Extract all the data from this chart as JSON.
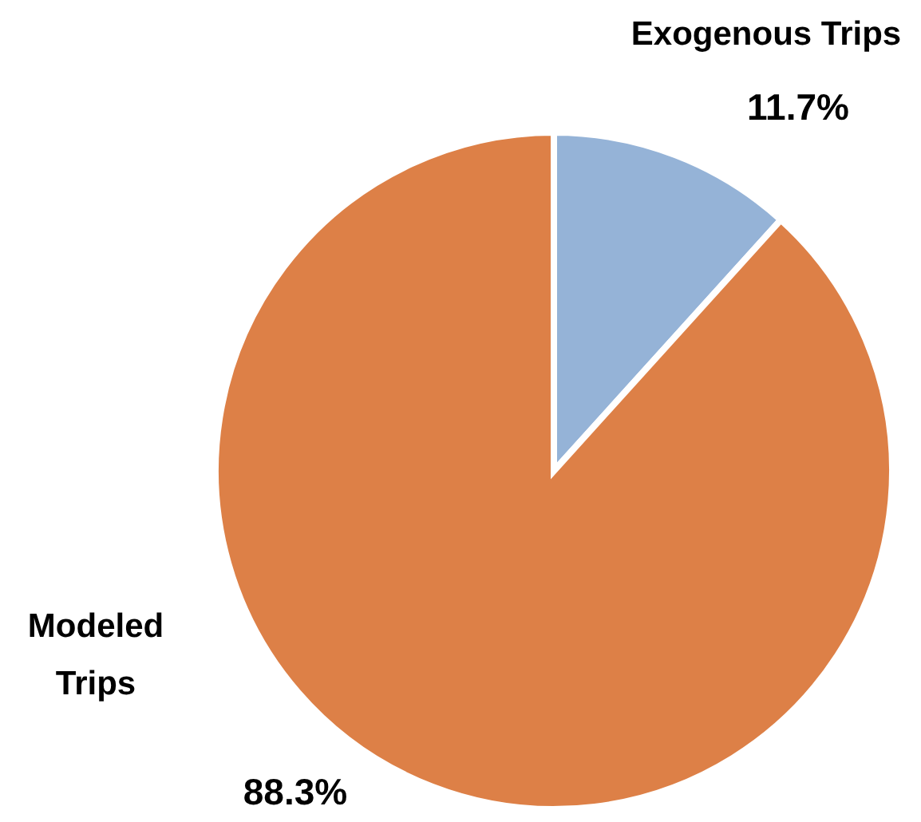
{
  "chart_data": {
    "type": "pie",
    "categories": [
      "Exogenous Trips",
      "Modeled Trips"
    ],
    "values": [
      11.7,
      88.3
    ],
    "colors": [
      "#95b3d7",
      "#dd8047"
    ],
    "value_labels": [
      "11.7%",
      "88.3%"
    ]
  }
}
